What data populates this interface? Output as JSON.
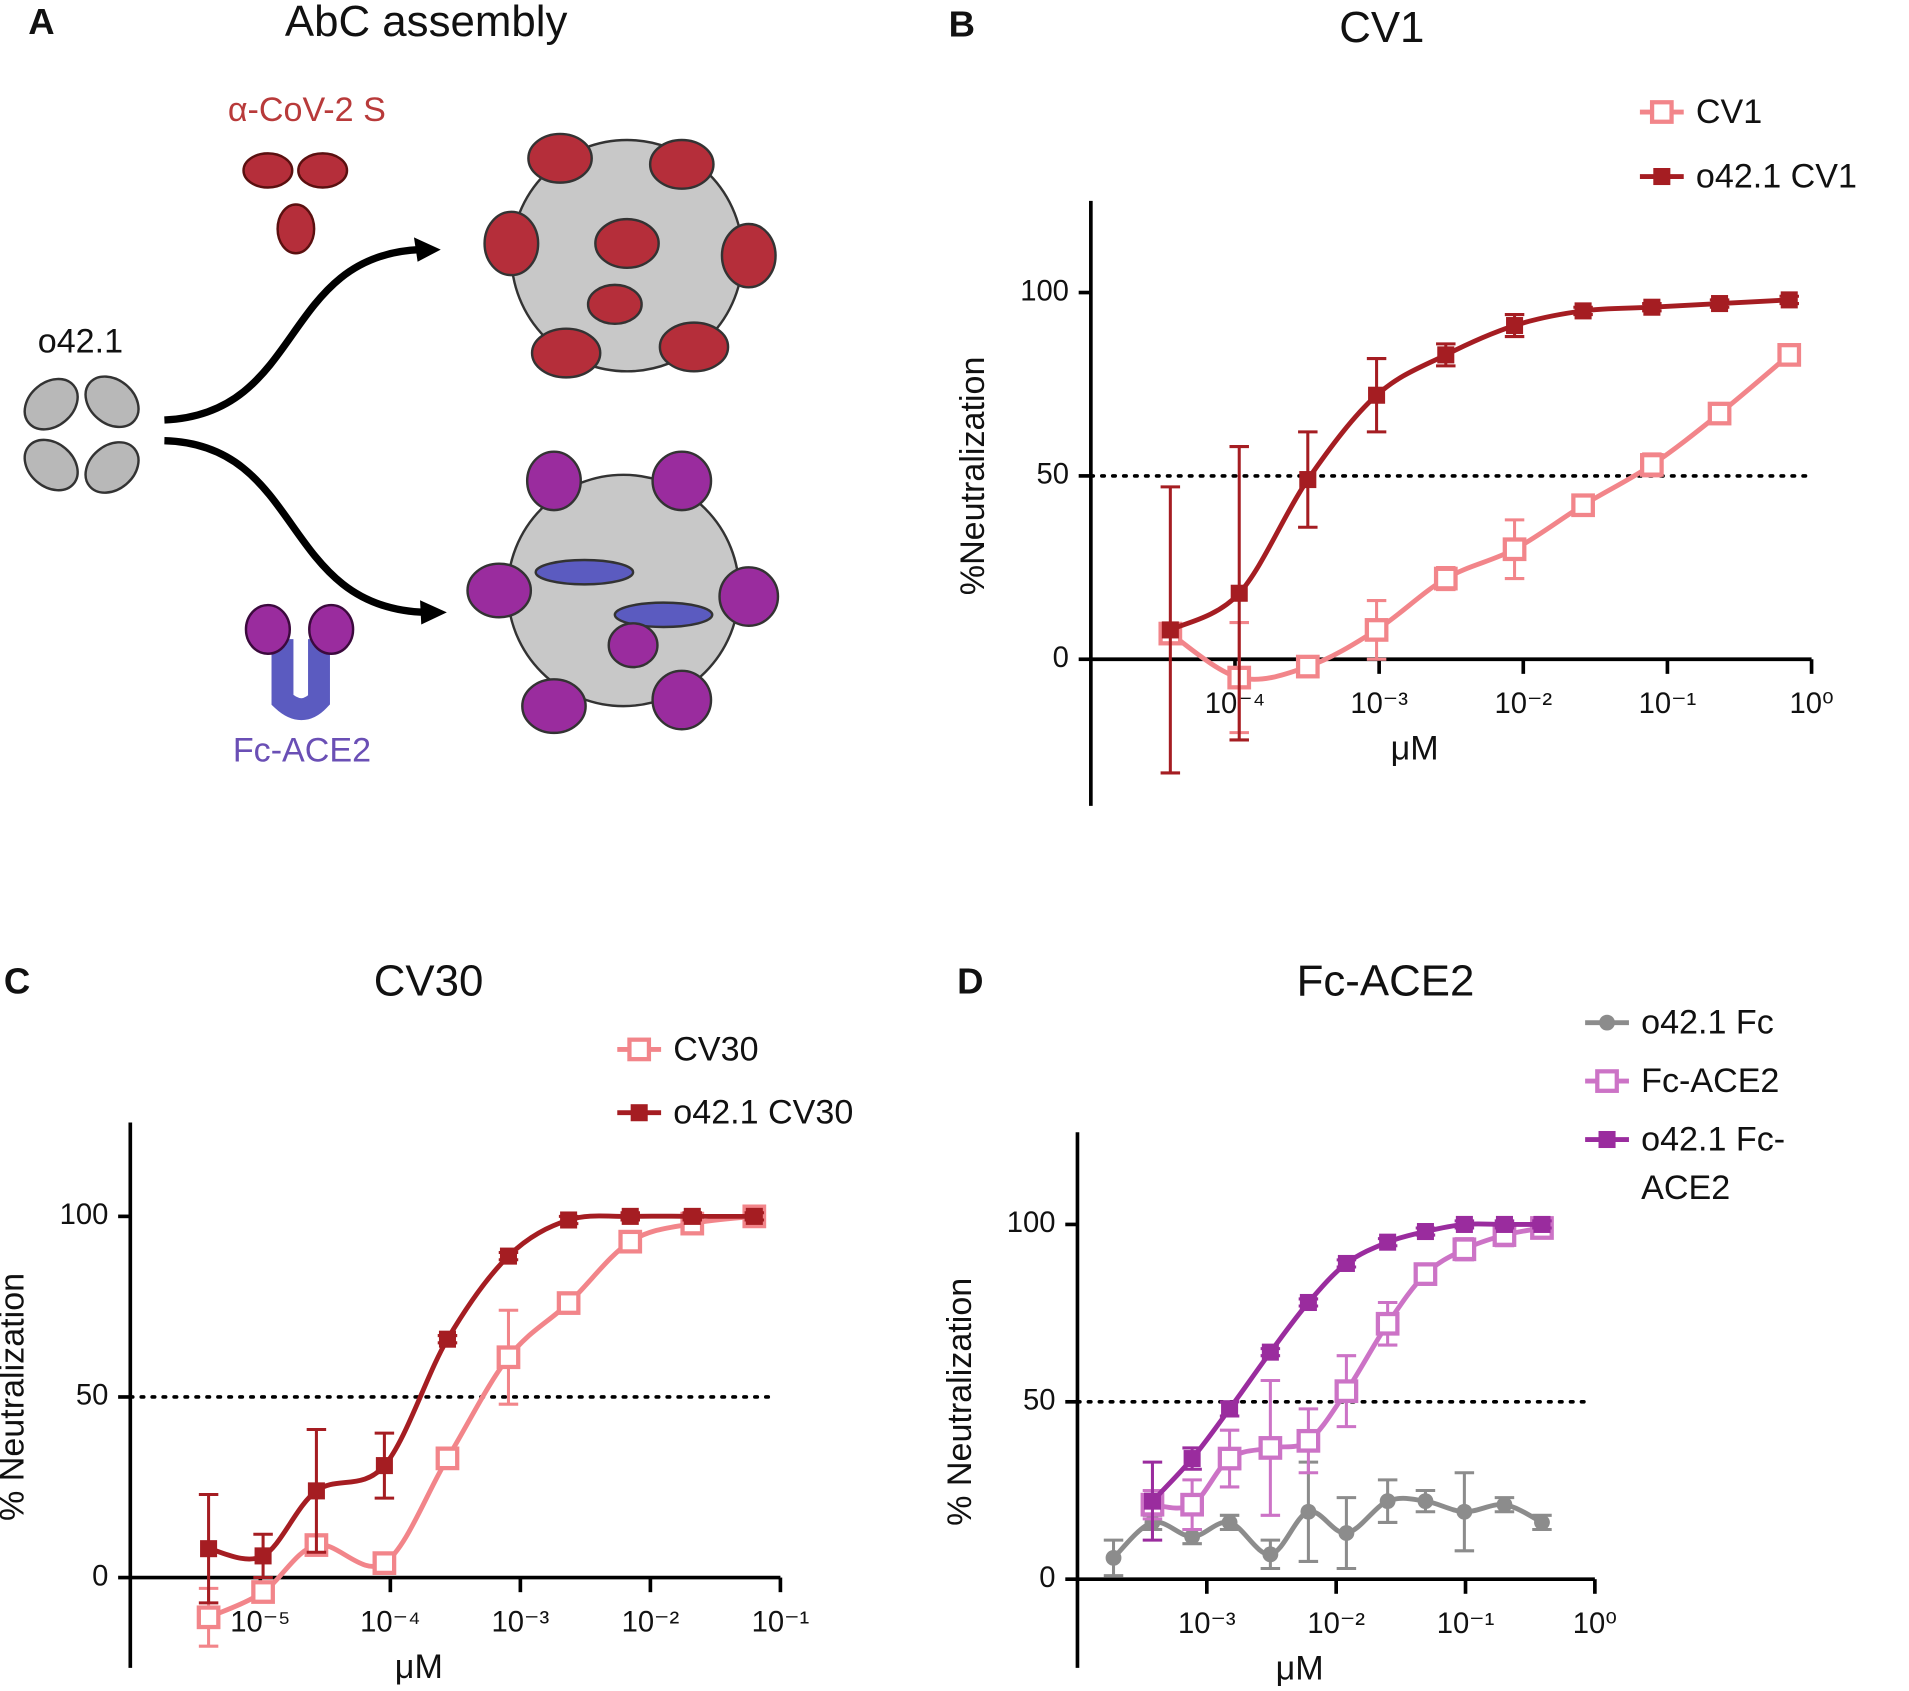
{
  "panel_a": {
    "label": "A",
    "title": "AbC assembly",
    "antibody_label": "α-CoV-2 S",
    "scaffold_label": "o42.1",
    "fc_label": "Fc-ACE2"
  },
  "chart_data": [
    {
      "type": "line",
      "panel_label": "B",
      "title": "CV1",
      "xlabel": "μM",
      "ylabel": "%Neutralization",
      "xscale": "log",
      "xlim": [
        1e-05,
        1
      ],
      "ylim": [
        -40,
        125
      ],
      "yticks": [
        0,
        50,
        100
      ],
      "xticks": [
        {
          "value": 0.0001,
          "label": "10⁻⁴"
        },
        {
          "value": 0.001,
          "label": "10⁻³"
        },
        {
          "value": 0.01,
          "label": "10⁻²"
        },
        {
          "value": 0.1,
          "label": "10⁻¹"
        },
        {
          "value": 1,
          "label": "10⁰"
        }
      ],
      "reference_line": 50,
      "legend": "upper right",
      "series": [
        {
          "name": "CV1",
          "color": "#f2858a",
          "marker": "open-square",
          "x": [
            3.56e-05,
            0.000107,
            0.00032,
            0.00096,
            0.0029,
            0.0087,
            0.026,
            0.078,
            0.23,
            0.7
          ],
          "values": [
            7,
            -5,
            -2,
            8,
            22,
            30,
            42,
            53,
            67,
            83
          ],
          "errors": [
            2,
            15,
            2,
            8,
            3,
            8,
            2,
            3,
            2,
            2
          ]
        },
        {
          "name": "o42.1 CV1",
          "color": "#a51d22",
          "marker": "square",
          "x": [
            3.56e-05,
            0.000107,
            0.00032,
            0.00096,
            0.0029,
            0.0087,
            0.026,
            0.078,
            0.23,
            0.7
          ],
          "values": [
            8,
            18,
            49,
            72,
            83,
            91,
            95,
            96,
            97,
            98
          ],
          "errors": [
            39,
            40,
            13,
            10,
            3,
            3,
            1,
            1,
            1,
            1
          ]
        }
      ]
    },
    {
      "type": "line",
      "panel_label": "C",
      "title": "CV30",
      "xlabel": "μM",
      "ylabel": "% Neutralization",
      "xscale": "log",
      "xlim": [
        1e-06,
        0.1
      ],
      "ylim": [
        -25,
        126
      ],
      "yticks": [
        0,
        50,
        100
      ],
      "xticks": [
        {
          "value": 1e-05,
          "label": "10⁻⁵"
        },
        {
          "value": 0.0001,
          "label": "10⁻⁴"
        },
        {
          "value": 0.001,
          "label": "10⁻³"
        },
        {
          "value": 0.01,
          "label": "10⁻²"
        },
        {
          "value": 0.1,
          "label": "10⁻¹"
        }
      ],
      "reference_line": 50,
      "legend": "upper right",
      "series": [
        {
          "name": "CV30",
          "color": "#f2858a",
          "marker": "open-square",
          "x": [
            4e-06,
            1.05e-05,
            2.7e-05,
            9e-05,
            0.000275,
            0.00081,
            0.00235,
            0.007,
            0.021,
            0.063
          ],
          "values": [
            -11,
            -4,
            9,
            4,
            33,
            61,
            76,
            93,
            98,
            100
          ],
          "errors": [
            8,
            2,
            2,
            2,
            2,
            13,
            2,
            1,
            1,
            1
          ]
        },
        {
          "name": "o42.1 CV30",
          "color": "#a51d22",
          "marker": "square",
          "x": [
            4e-06,
            1.05e-05,
            2.7e-05,
            9e-05,
            0.000275,
            0.00081,
            0.00235,
            0.007,
            0.021,
            0.063
          ],
          "values": [
            8,
            6,
            24,
            31,
            66,
            89,
            99,
            100,
            100,
            100
          ],
          "errors": [
            15,
            6,
            17,
            9,
            1,
            1,
            1,
            1,
            1,
            1
          ]
        }
      ]
    },
    {
      "type": "line",
      "panel_label": "D",
      "title": "Fc-ACE2",
      "xlabel": "μM",
      "ylabel": "% Neutralization",
      "xscale": "log",
      "xlim": [
        0.0001,
        1
      ],
      "ylim": [
        -25,
        126
      ],
      "yticks": [
        0,
        50,
        100
      ],
      "xticks": [
        {
          "value": 0.001,
          "label": "10⁻³"
        },
        {
          "value": 0.01,
          "label": "10⁻²"
        },
        {
          "value": 0.1,
          "label": "10⁻¹"
        },
        {
          "value": 1,
          "label": "10⁰"
        }
      ],
      "reference_line": 50,
      "legend": "upper right",
      "series": [
        {
          "name": "o42.1 Fc",
          "color": "#8c8c8c",
          "marker": "circle",
          "x": [
            0.00019,
            0.00038,
            0.00077,
            0.0015,
            0.0031,
            0.0061,
            0.012,
            0.025,
            0.049,
            0.098,
            0.2,
            0.39
          ],
          "values": [
            6,
            16,
            12,
            16,
            7,
            19,
            13,
            22,
            22,
            19,
            21,
            16
          ],
          "errors": [
            5,
            2,
            2,
            2,
            4,
            14,
            10,
            6,
            3,
            11,
            2,
            2
          ]
        },
        {
          "name": "Fc-ACE2",
          "color": "#cc73c6",
          "marker": "open-square",
          "x": [
            0.00038,
            0.00077,
            0.0015,
            0.0031,
            0.0061,
            0.012,
            0.025,
            0.049,
            0.098,
            0.2,
            0.39
          ],
          "values": [
            21,
            21,
            34,
            37,
            39,
            53,
            72,
            86,
            93,
            97,
            99
          ],
          "errors": [
            4,
            7,
            8,
            19,
            9,
            10,
            6,
            2,
            3,
            3,
            2
          ]
        },
        {
          "name": "o42.1 Fc-ACE2",
          "color": "#9a2c9e",
          "marker": "square",
          "x": [
            0.00038,
            0.00077,
            0.0015,
            0.0031,
            0.0061,
            0.012,
            0.025,
            0.049,
            0.098,
            0.2,
            0.39
          ],
          "values": [
            22,
            34,
            48,
            64,
            78,
            89,
            95,
            98,
            100,
            100,
            100
          ],
          "errors": [
            11,
            3,
            2,
            1,
            1,
            1,
            1,
            1,
            1,
            1,
            1
          ]
        }
      ]
    }
  ]
}
